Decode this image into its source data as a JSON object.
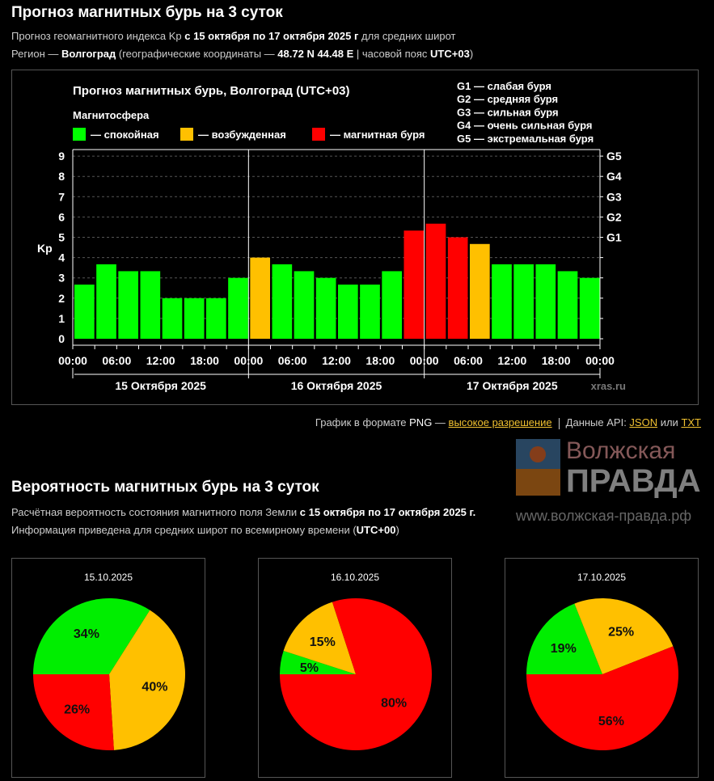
{
  "section1": {
    "title": "Прогноз магнитных бурь на 3 суток",
    "line1_a": "Прогноз геомагнитного индекса Kp ",
    "line1_b": "с 15 октября по 17 октября 2025 г",
    "line1_c": " для средних широт",
    "line2_a": "Регион — ",
    "line2_b": "Волгоград",
    "line2_c": " (географические координаты — ",
    "line2_d": "48.72 N 44.48 E",
    "line2_e": " | часовой пояс ",
    "line2_f": "UTC+03",
    "line2_g": ")"
  },
  "chart_data": {
    "type": "bar",
    "title": "Прогноз магнитных бурь, Волгоград (UTC+03)",
    "ylabel": "Kp",
    "ylim": [
      0,
      9
    ],
    "yticks": [
      "0",
      "1",
      "2",
      "3",
      "4",
      "5",
      "6",
      "7",
      "8",
      "9"
    ],
    "g_levels": [
      {
        "label": "G1",
        "kp": 5
      },
      {
        "label": "G2",
        "kp": 6
      },
      {
        "label": "G3",
        "kp": 7
      },
      {
        "label": "G4",
        "kp": 8
      },
      {
        "label": "G5",
        "kp": 9
      }
    ],
    "legend_title": "Магнитосфера",
    "legend": [
      {
        "label": "— спокойная",
        "color": "#00ff00"
      },
      {
        "label": "— возбужденная",
        "color": "#ffc000"
      },
      {
        "label": "— магнитная буря",
        "color": "#ff0000"
      }
    ],
    "g_legend": [
      "G1 — слабая буря",
      "G2 — средняя буря",
      "G3 — сильная буря",
      "G4 — очень сильная буря",
      "G5 — экстремальная буря"
    ],
    "xticks": [
      "00:00",
      "06:00",
      "12:00",
      "18:00",
      "00:00",
      "06:00",
      "12:00",
      "18:00",
      "00:00",
      "06:00",
      "12:00",
      "18:00",
      "00:00"
    ],
    "days": [
      "15 Октября 2025",
      "16 Октября 2025",
      "17 Октября 2025"
    ],
    "values": [
      2.67,
      3.67,
      3.33,
      3.33,
      2,
      2,
      2,
      3,
      4,
      3.67,
      3.33,
      3,
      2.67,
      2.67,
      3.33,
      5.33,
      5.67,
      5,
      4.67,
      3.67,
      3.67,
      3.67,
      3.33,
      3
    ],
    "levels": [
      "q",
      "q",
      "q",
      "q",
      "q",
      "q",
      "q",
      "q",
      "a",
      "q",
      "q",
      "q",
      "q",
      "q",
      "q",
      "s",
      "s",
      "s",
      "a",
      "q",
      "q",
      "q",
      "q",
      "q"
    ],
    "credit": "xras.ru",
    "grid": true
  },
  "links": {
    "png_text": "График в формате ",
    "png": "PNG",
    "dash": " — ",
    "hires": "высокое разрешение",
    "api": "Данные API: ",
    "json": "JSON",
    "or": " или ",
    "txt": "TXT"
  },
  "section2": {
    "title": "Вероятность магнитных бурь на 3 суток",
    "line1_a": "Расчётная вероятность состояния магнитного поля Земли ",
    "line1_b": "с 15 октября по 17 октября 2025 г.",
    "line2_a": "Информация приведена для средних широт по всемирному времени (",
    "line2_b": "UTC+00",
    "line2_c": ")"
  },
  "pies": [
    {
      "date": "15.10.2025",
      "slices": [
        {
          "label": "34%",
          "value": 34,
          "color": "#00ee00"
        },
        {
          "label": "40%",
          "value": 40,
          "color": "#ffc000"
        },
        {
          "label": "26%",
          "value": 26,
          "color": "#ff0000"
        }
      ]
    },
    {
      "date": "16.10.2025",
      "slices": [
        {
          "label": "5%",
          "value": 5,
          "color": "#00ee00"
        },
        {
          "label": "15%",
          "value": 15,
          "color": "#ffc000"
        },
        {
          "label": "80%",
          "value": 80,
          "color": "#ff0000"
        }
      ]
    },
    {
      "date": "17.10.2025",
      "slices": [
        {
          "label": "19%",
          "value": 19,
          "color": "#00ee00"
        },
        {
          "label": "25%",
          "value": 25,
          "color": "#ffc000"
        },
        {
          "label": "56%",
          "value": 56,
          "color": "#ff0000"
        }
      ]
    }
  ],
  "watermark": {
    "line1": "Волжская",
    "line2": "ПРАВДА",
    "url": "www.волжская-правда.рф"
  }
}
